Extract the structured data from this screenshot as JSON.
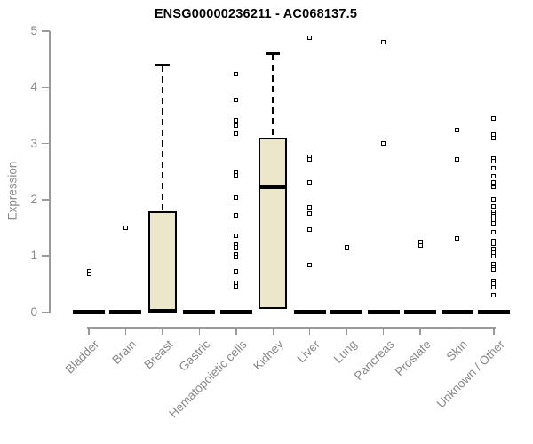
{
  "chart_data": {
    "type": "boxplot",
    "title": "ENSG00000236211 - AC068137.5",
    "ylabel": "Expression",
    "ylim": [
      0,
      5
    ],
    "yticks": [
      0,
      1,
      2,
      3,
      4,
      5
    ],
    "grid": false,
    "legend": false,
    "categories": [
      "Bladder",
      "Brain",
      "Breast",
      "Gastric",
      "Hematopoietic cells",
      "Kidney",
      "Liver",
      "Lung",
      "Pancreas",
      "Prostate",
      "Skin",
      "Unknown / Other"
    ],
    "boxes": [
      {
        "label": "Bladder",
        "q1": 0,
        "median": 0,
        "q3": 0,
        "whisker_high": 0,
        "outliers": [
          0.73,
          0.68
        ]
      },
      {
        "label": "Brain",
        "q1": 0,
        "median": 0,
        "q3": 0,
        "whisker_high": 0,
        "outliers": [
          1.5
        ]
      },
      {
        "label": "Breast",
        "q1": 0,
        "median": 0.02,
        "q3": 1.8,
        "whisker_high": 4.4,
        "outliers": []
      },
      {
        "label": "Gastric",
        "q1": 0,
        "median": 0,
        "q3": 0,
        "whisker_high": 0,
        "outliers": []
      },
      {
        "label": "Hematopoietic cells",
        "q1": 0,
        "median": 0,
        "q3": 0,
        "whisker_high": 0,
        "outliers": [
          4.24,
          3.77,
          3.42,
          3.32,
          3.18,
          2.48,
          2.44,
          2.04,
          1.72,
          1.36,
          1.2,
          1.15,
          1.03,
          0.98,
          0.73,
          0.52,
          0.46
        ]
      },
      {
        "label": "Kidney",
        "q1": 0.05,
        "median": 2.23,
        "q3": 3.1,
        "whisker_high": 4.6,
        "outliers": []
      },
      {
        "label": "Liver",
        "q1": 0,
        "median": 0,
        "q3": 0,
        "whisker_high": 0,
        "outliers": [
          4.88,
          2.76,
          2.71,
          2.31,
          1.87,
          1.76,
          1.47,
          0.84
        ]
      },
      {
        "label": "Lung",
        "q1": 0,
        "median": 0,
        "q3": 0,
        "whisker_high": 0,
        "outliers": [
          1.15
        ]
      },
      {
        "label": "Pancreas",
        "q1": 0,
        "median": 0,
        "q3": 0,
        "whisker_high": 0,
        "outliers": [
          4.81,
          3.0
        ]
      },
      {
        "label": "Prostate",
        "q1": 0,
        "median": 0,
        "q3": 0,
        "whisker_high": 0,
        "outliers": [
          1.25,
          1.18
        ]
      },
      {
        "label": "Skin",
        "q1": 0,
        "median": 0,
        "q3": 0,
        "whisker_high": 0,
        "outliers": [
          3.24,
          2.71,
          1.31
        ]
      },
      {
        "label": "Unknown / Other",
        "q1": 0,
        "median": 0,
        "q3": 0,
        "whisker_high": 0,
        "outliers": [
          3.45,
          3.16,
          3.09,
          2.74,
          2.68,
          2.56,
          2.41,
          2.3,
          2.22,
          2.01,
          1.88,
          1.78,
          1.73,
          1.7,
          1.64,
          1.58,
          1.42,
          1.27,
          1.22,
          1.12,
          1.06,
          1.0,
          0.86,
          0.81,
          0.76,
          0.55,
          0.5,
          0.45,
          0.3
        ]
      }
    ],
    "colors": {
      "box_fill": "#ECE6CA",
      "box_stroke": "#000000",
      "axis_line": "#9a9a9a",
      "axis_text": "#888888",
      "title_text": "#000000"
    }
  }
}
